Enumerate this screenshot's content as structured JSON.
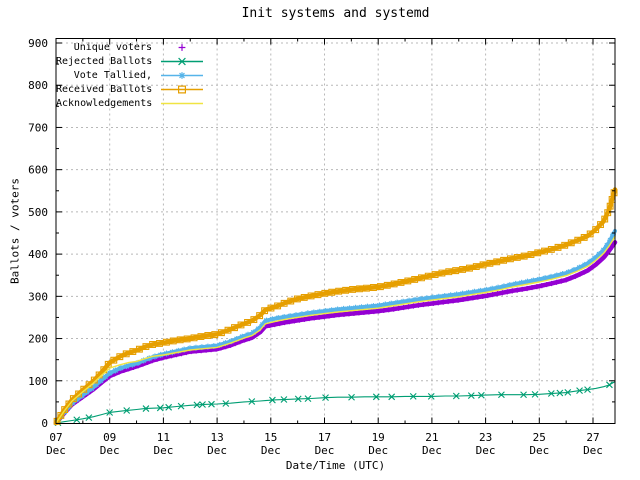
{
  "window": {
    "title": "Init systems and systemd"
  },
  "chart_data": {
    "type": "line",
    "title": "Init systems and systemd",
    "xlabel": "Date/Time (UTC)",
    "ylabel": "Ballots / voters",
    "grid": true,
    "legend_position": "top-left",
    "ylim": [
      0,
      900
    ],
    "y_tick_step": 100,
    "x_month": "Dec",
    "x_tick_days": [
      7,
      9,
      11,
      13,
      15,
      17,
      19,
      21,
      23,
      25,
      27
    ],
    "x_tick_labels": [
      "07",
      "09",
      "11",
      "13",
      "15",
      "17",
      "19",
      "21",
      "23",
      "25",
      "27"
    ],
    "x_range_days": [
      7,
      27.82
    ],
    "x_days": [
      7.0,
      7.3,
      7.6,
      8.0,
      8.4,
      8.7,
      9.0,
      9.4,
      9.7,
      10.0,
      10.3,
      10.6,
      11.0,
      11.5,
      12.0,
      12.5,
      13.0,
      13.5,
      14.0,
      14.3,
      14.6,
      14.8,
      15.2,
      15.6,
      16.0,
      16.5,
      17.0,
      17.5,
      18.0,
      18.5,
      19.0,
      19.5,
      20.0,
      20.5,
      21.0,
      21.5,
      22.0,
      22.5,
      23.0,
      23.5,
      24.0,
      24.5,
      25.0,
      25.5,
      26.0,
      26.4,
      26.8,
      27.1,
      27.4,
      27.6,
      27.82
    ],
    "series": [
      {
        "label": "Unique voters",
        "color": "#9400d3",
        "marker": "plus",
        "legend_line": false,
        "stroke_width": 4.5,
        "marker_spacing": 5,
        "jitter": false,
        "values": [
          0,
          23,
          44,
          62,
          80,
          96,
          111,
          122,
          128,
          134,
          141,
          148,
          155,
          162,
          169,
          172,
          175,
          184,
          196,
          202,
          215,
          229,
          234,
          239,
          243,
          248,
          252,
          256,
          259,
          262,
          265,
          269,
          274,
          279,
          283,
          287,
          291,
          296,
          301,
          307,
          313,
          318,
          324,
          331,
          339,
          349,
          361,
          375,
          392,
          408,
          428
        ]
      },
      {
        "label": "Rejected Ballots",
        "color": "#009e73",
        "marker": "cross",
        "legend_line": true,
        "stroke_width": 1.1,
        "marker_spacing": 16,
        "jitter": true,
        "values": [
          0,
          3,
          6,
          10,
          15,
          20,
          25,
          28,
          30,
          32,
          34,
          35,
          36,
          39,
          42,
          44,
          45,
          47,
          50,
          51,
          52,
          53,
          55,
          56,
          57,
          58,
          60,
          61,
          61,
          62,
          62,
          62,
          63,
          63,
          63,
          64,
          64,
          65,
          66,
          67,
          67,
          67,
          68,
          70,
          72,
          76,
          79,
          82,
          86,
          90,
          98
        ]
      },
      {
        "label": "Vote Tallied,",
        "color": "#56b4e9",
        "marker": "asterisk",
        "legend_line": true,
        "stroke_width": 4,
        "marker_spacing": 6,
        "jitter": false,
        "values": [
          0,
          25,
          47,
          66,
          85,
          102,
          118,
          130,
          136,
          141,
          149,
          156,
          163,
          170,
          177,
          180,
          183,
          193,
          206,
          212,
          226,
          242,
          248,
          252,
          256,
          261,
          265,
          269,
          272,
          275,
          278,
          283,
          288,
          293,
          297,
          301,
          305,
          310,
          315,
          321,
          328,
          334,
          340,
          347,
          355,
          365,
          378,
          392,
          410,
          428,
          455
        ]
      },
      {
        "label": "Received Ballots",
        "color": "#e69f00",
        "marker": "square",
        "legend_line": true,
        "stroke_width": 4.5,
        "marker_spacing": 7,
        "jitter": false,
        "values": [
          0,
          30,
          55,
          78,
          100,
          120,
          143,
          158,
          166,
          172,
          180,
          186,
          190,
          196,
          200,
          206,
          210,
          222,
          235,
          242,
          255,
          268,
          276,
          286,
          294,
          301,
          307,
          312,
          316,
          319,
          322,
          328,
          335,
          342,
          350,
          357,
          362,
          368,
          376,
          383,
          390,
          396,
          404,
          412,
          422,
          432,
          443,
          458,
          478,
          505,
          553
        ]
      },
      {
        "label": "Acknowledgements",
        "color": "#f0e442",
        "marker": "none",
        "legend_line": true,
        "stroke_width": 1.4,
        "marker_spacing": 0,
        "jitter": false,
        "values": [
          0,
          28,
          52,
          74,
          95,
          113,
          130,
          138,
          143,
          146,
          152,
          158,
          161,
          167,
          173,
          176,
          179,
          189,
          201,
          207,
          220,
          235,
          241,
          246,
          250,
          255,
          259,
          263,
          266,
          269,
          272,
          277,
          282,
          287,
          291,
          295,
          299,
          304,
          309,
          315,
          322,
          328,
          334,
          341,
          349,
          359,
          371,
          385,
          402,
          419,
          442
        ]
      }
    ]
  }
}
